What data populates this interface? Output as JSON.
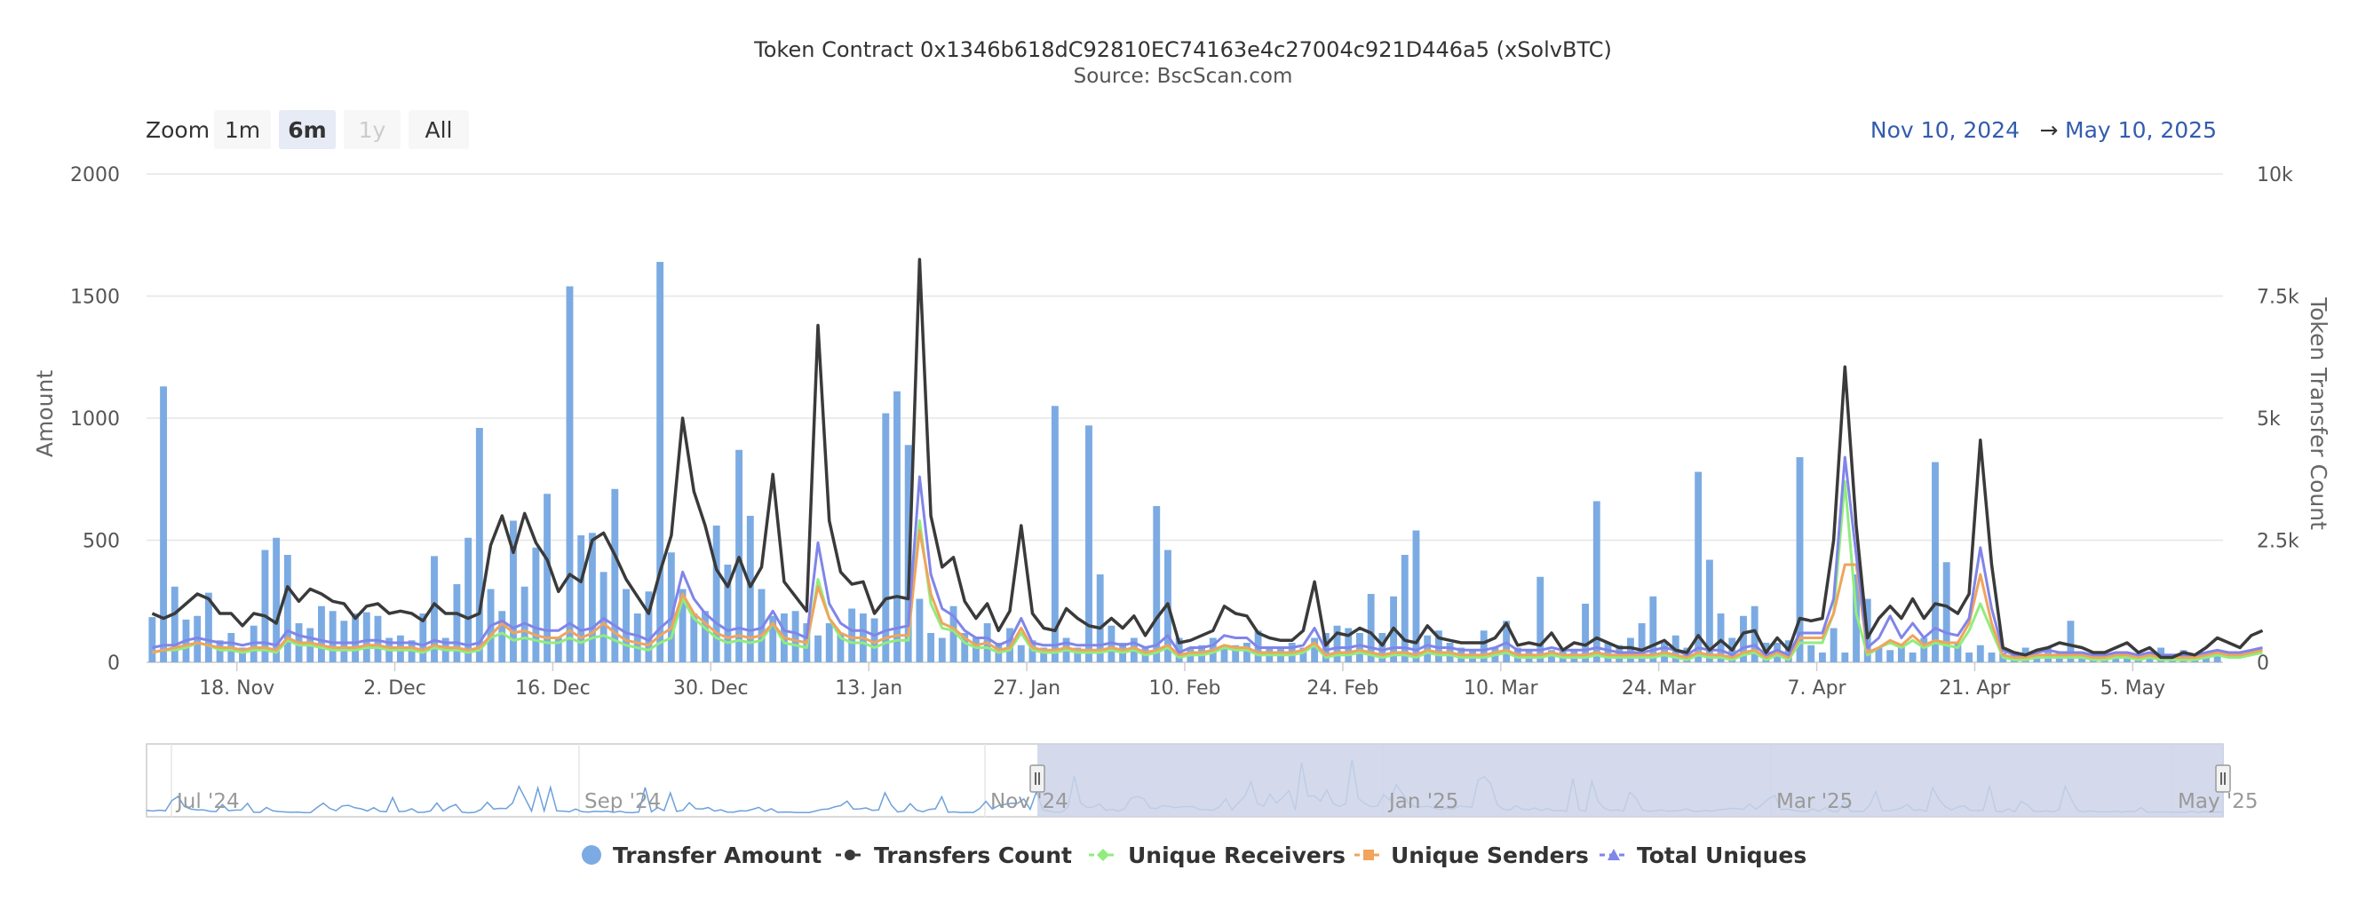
{
  "title": "Token Contract 0x1346b618dC92810EC74163e4c27004c921D446a5 (xSolvBTC)",
  "subtitle": "Source: BscScan.com",
  "zoom": {
    "label": "Zoom",
    "buttons": [
      "1m",
      "6m",
      "1y",
      "All"
    ],
    "selected": "6m",
    "disabled": [
      "1y"
    ]
  },
  "range": {
    "from": "Nov 10, 2024",
    "arrow": "→",
    "to": "May 10, 2025"
  },
  "colors": {
    "transfer_amount": "#7cabe3",
    "transfers_count": "#3a3a3a",
    "unique_receivers": "#90ed7d",
    "unique_senders": "#f0a45c",
    "total_uniques": "#8085e9",
    "navigator_series": "#6ea0db",
    "navigator_mask": "#ccd3e8"
  },
  "navigator": {
    "labels": [
      "Jul '24",
      "Sep '24",
      "Nov '24",
      "Jan '25",
      "Mar '25",
      "May '25"
    ]
  },
  "chart_data": {
    "type": "bar+line",
    "title": "Token Contract 0x1346b618dC92810EC74163e4c27004c921D446a5 (xSolvBTC)",
    "subtitle": "Source: BscScan.com",
    "x_range": [
      "2024-11-10",
      "2025-05-10"
    ],
    "x_ticks": [
      "18. Nov",
      "2. Dec",
      "16. Dec",
      "30. Dec",
      "13. Jan",
      "27. Jan",
      "10. Feb",
      "24. Feb",
      "10. Mar",
      "24. Mar",
      "7. Apr",
      "21. Apr",
      "5. May"
    ],
    "y_left": {
      "label": "Amount",
      "range": [
        0,
        2000
      ],
      "ticks": [
        "0",
        "500",
        "1000",
        "1500",
        "2000"
      ]
    },
    "y_right": {
      "label": "Token Transfer Count",
      "range": [
        0,
        10000
      ],
      "ticks": [
        "0",
        "2.5k",
        "5k",
        "7.5k",
        "10k"
      ]
    },
    "legend": [
      "Transfer Amount",
      "Transfers Count",
      "Unique Receivers",
      "Unique Senders",
      "Total Uniques"
    ],
    "legend_position": "bottom",
    "grid": true,
    "series": [
      {
        "name": "Transfer Amount",
        "type": "bar",
        "axis": "left",
        "values": [
          185,
          1130,
          310,
          175,
          190,
          285,
          90,
          120,
          60,
          150,
          460,
          510,
          440,
          160,
          140,
          230,
          210,
          170,
          200,
          205,
          190,
          100,
          110,
          90,
          200,
          435,
          100,
          320,
          510,
          960,
          300,
          210,
          580,
          310,
          470,
          690,
          100,
          1540,
          520,
          530,
          370,
          710,
          300,
          200,
          290,
          1640,
          450,
          300,
          200,
          210,
          560,
          400,
          870,
          600,
          300,
          190,
          200,
          210,
          160,
          110,
          160,
          120,
          220,
          200,
          180,
          1020,
          1110,
          890,
          260,
          120,
          100,
          230,
          120,
          100,
          160,
          80,
          140,
          70,
          90,
          60,
          1050,
          100,
          60,
          970,
          360,
          150,
          80,
          100,
          60,
          640,
          460,
          100,
          60,
          70,
          100,
          60,
          70,
          80,
          130,
          60,
          60,
          80,
          60,
          100,
          120,
          150,
          140,
          120,
          280,
          120,
          270,
          440,
          540,
          110,
          130,
          80,
          60,
          50,
          130,
          60,
          170,
          60,
          50,
          350,
          50,
          60,
          50,
          240,
          660,
          80,
          70,
          100,
          160,
          270,
          80,
          110,
          60,
          780,
          420,
          200,
          100,
          190,
          230,
          80,
          80,
          90,
          840,
          70,
          40,
          140,
          40,
          360,
          260,
          60,
          50,
          70,
          40,
          100,
          820,
          410,
          80,
          40,
          70,
          40,
          40,
          40,
          60,
          30,
          60,
          40,
          170,
          30,
          40,
          30,
          40,
          30,
          30,
          20,
          60,
          20,
          50,
          30,
          40,
          30
        ]
      },
      {
        "name": "Transfers Count",
        "type": "line",
        "axis": "right",
        "values": [
          1000,
          900,
          1000,
          1200,
          1400,
          1300,
          1000,
          1000,
          750,
          1000,
          950,
          800,
          1550,
          1250,
          1500,
          1400,
          1250,
          1200,
          900,
          1150,
          1200,
          1000,
          1050,
          1000,
          850,
          1200,
          1000,
          1000,
          900,
          1000,
          2400,
          3000,
          2250,
          3050,
          2450,
          2100,
          1450,
          1800,
          1650,
          2500,
          2650,
          2200,
          1700,
          1350,
          1000,
          1850,
          2600,
          5000,
          3500,
          2800,
          1900,
          1550,
          2150,
          1550,
          1950,
          3850,
          1650,
          1350,
          1050,
          6900,
          2900,
          1850,
          1600,
          1650,
          1000,
          1300,
          1350,
          1300,
          8250,
          3000,
          1950,
          2150,
          1250,
          900,
          1200,
          650,
          1050,
          2800,
          1000,
          700,
          650,
          1100,
          900,
          750,
          700,
          900,
          700,
          950,
          550,
          900,
          1200,
          400,
          450,
          550,
          650,
          1150,
          1000,
          950,
          600,
          500,
          450,
          450,
          650,
          1650,
          350,
          600,
          550,
          700,
          600,
          350,
          700,
          450,
          400,
          750,
          500,
          450,
          400,
          400,
          400,
          500,
          800,
          350,
          400,
          350,
          600,
          250,
          400,
          350,
          500,
          400,
          300,
          300,
          250,
          350,
          450,
          250,
          200,
          550,
          250,
          450,
          250,
          600,
          650,
          200,
          500,
          250,
          900,
          850,
          900,
          2500,
          6050,
          2800,
          500,
          900,
          1150,
          900,
          1300,
          900,
          1200,
          1150,
          1000,
          1400,
          4550,
          2000,
          300,
          200,
          150,
          250,
          300,
          400,
          350,
          300,
          200,
          200,
          300,
          400,
          200,
          300,
          100,
          100,
          200,
          150,
          300,
          500,
          400,
          300,
          550,
          650
        ]
      },
      {
        "name": "Unique Receivers",
        "type": "line",
        "axis": "right",
        "values": [
          200,
          250,
          250,
          300,
          400,
          350,
          250,
          250,
          200,
          250,
          250,
          200,
          450,
          350,
          350,
          300,
          250,
          250,
          250,
          300,
          300,
          250,
          250,
          250,
          200,
          300,
          250,
          250,
          200,
          250,
          500,
          600,
          450,
          500,
          450,
          400,
          400,
          500,
          400,
          500,
          550,
          450,
          350,
          300,
          250,
          400,
          500,
          1300,
          900,
          700,
          500,
          400,
          450,
          400,
          450,
          800,
          400,
          350,
          300,
          1700,
          900,
          500,
          400,
          400,
          300,
          400,
          450,
          450,
          2900,
          1200,
          700,
          650,
          400,
          300,
          300,
          200,
          250,
          600,
          250,
          200,
          200,
          250,
          200,
          200,
          200,
          250,
          200,
          250,
          150,
          200,
          300,
          100,
          150,
          150,
          200,
          300,
          250,
          250,
          150,
          150,
          150,
          150,
          200,
          350,
          100,
          150,
          150,
          200,
          150,
          100,
          150,
          150,
          100,
          200,
          150,
          150,
          100,
          100,
          100,
          150,
          200,
          100,
          100,
          100,
          150,
          100,
          100,
          100,
          150,
          100,
          100,
          100,
          100,
          100,
          150,
          100,
          50,
          150,
          100,
          100,
          50,
          150,
          200,
          50,
          150,
          50,
          400,
          400,
          400,
          1000,
          3700,
          1000,
          150,
          300,
          400,
          300,
          450,
          300,
          400,
          350,
          300,
          650,
          1200,
          650,
          100,
          50,
          50,
          100,
          100,
          100,
          100,
          100,
          50,
          50,
          100,
          100,
          50,
          100,
          50,
          50,
          50,
          50,
          100,
          150,
          100,
          100,
          150,
          200
        ]
      },
      {
        "name": "Unique Senders",
        "type": "line",
        "axis": "right",
        "values": [
          200,
          250,
          300,
          350,
          400,
          350,
          300,
          300,
          250,
          300,
          300,
          250,
          500,
          400,
          400,
          350,
          300,
          300,
          300,
          350,
          350,
          300,
          300,
          300,
          250,
          350,
          300,
          300,
          250,
          300,
          550,
          800,
          600,
          650,
          550,
          500,
          500,
          650,
          500,
          600,
          800,
          600,
          450,
          400,
          350,
          550,
          700,
          1400,
          1000,
          800,
          600,
          500,
          550,
          500,
          550,
          800,
          500,
          450,
          400,
          1550,
          900,
          600,
          500,
          500,
          400,
          500,
          550,
          550,
          2700,
          1400,
          800,
          700,
          500,
          350,
          400,
          250,
          300,
          700,
          300,
          250,
          250,
          300,
          250,
          250,
          250,
          300,
          250,
          300,
          200,
          250,
          350,
          150,
          200,
          200,
          250,
          350,
          300,
          300,
          200,
          200,
          200,
          200,
          250,
          400,
          150,
          200,
          200,
          250,
          200,
          150,
          200,
          200,
          150,
          250,
          200,
          200,
          150,
          150,
          150,
          200,
          250,
          150,
          150,
          150,
          200,
          150,
          150,
          150,
          200,
          150,
          150,
          150,
          150,
          150,
          200,
          150,
          100,
          200,
          150,
          150,
          100,
          200,
          250,
          100,
          200,
          100,
          500,
          500,
          500,
          1000,
          2000,
          2000,
          200,
          300,
          450,
          350,
          550,
          350,
          450,
          400,
          400,
          800,
          1800,
          800,
          150,
          100,
          100,
          150,
          150,
          150,
          150,
          150,
          100,
          100,
          150,
          150,
          100,
          150,
          100,
          100,
          100,
          100,
          150,
          200,
          150,
          150,
          200,
          250
        ]
      },
      {
        "name": "Total Uniques",
        "type": "line",
        "axis": "right",
        "values": [
          300,
          350,
          350,
          450,
          500,
          450,
          400,
          400,
          350,
          400,
          400,
          350,
          650,
          550,
          500,
          450,
          400,
          400,
          400,
          450,
          450,
          400,
          400,
          400,
          350,
          450,
          400,
          400,
          350,
          400,
          750,
          850,
          700,
          800,
          700,
          650,
          650,
          800,
          650,
          700,
          900,
          750,
          600,
          550,
          450,
          700,
          900,
          1850,
          1300,
          1000,
          800,
          650,
          700,
          650,
          700,
          1050,
          650,
          600,
          500,
          2450,
          1200,
          800,
          650,
          650,
          550,
          650,
          700,
          750,
          3800,
          1800,
          1100,
          950,
          650,
          500,
          500,
          350,
          450,
          900,
          400,
          350,
          350,
          400,
          350,
          350,
          350,
          400,
          350,
          400,
          300,
          350,
          550,
          200,
          300,
          300,
          350,
          550,
          500,
          500,
          300,
          300,
          300,
          300,
          350,
          700,
          250,
          300,
          300,
          350,
          300,
          250,
          300,
          300,
          250,
          350,
          300,
          300,
          250,
          250,
          250,
          300,
          400,
          250,
          250,
          250,
          300,
          250,
          250,
          250,
          300,
          250,
          200,
          200,
          200,
          250,
          300,
          250,
          150,
          300,
          250,
          250,
          150,
          300,
          350,
          150,
          250,
          150,
          600,
          600,
          600,
          1300,
          4200,
          2200,
          300,
          500,
          950,
          500,
          800,
          500,
          700,
          600,
          550,
          900,
          2350,
          1100,
          250,
          150,
          150,
          200,
          250,
          200,
          200,
          200,
          150,
          150,
          200,
          200,
          150,
          200,
          150,
          150,
          150,
          150,
          200,
          250,
          200,
          200,
          250,
          300
        ]
      }
    ]
  }
}
